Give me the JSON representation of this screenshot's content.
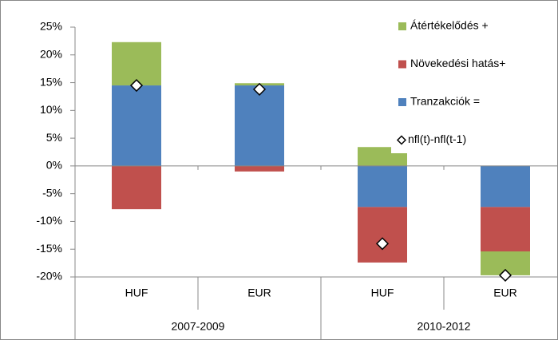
{
  "chart_data": {
    "type": "bar",
    "stacked": true,
    "groups": [
      {
        "name": "2007-2009",
        "categories": [
          "HUF",
          "EUR"
        ]
      },
      {
        "name": "2010-2012",
        "categories": [
          "HUF",
          "EUR"
        ]
      }
    ],
    "series": [
      {
        "name": "Átértékelődés +",
        "color": "#9bbb59",
        "values": [
          7.8,
          0.4,
          3.4,
          -4.3
        ]
      },
      {
        "name": "Növekedési hatás+",
        "color": "#c0504d",
        "values": [
          -7.8,
          -1.0,
          -10.0,
          -8.0
        ]
      },
      {
        "name": "Tranzakciók =",
        "color": "#4f81bd",
        "values": [
          14.5,
          14.5,
          -7.4,
          -7.4
        ]
      },
      {
        "name": "nfl(t)-nfl(t-1)",
        "type": "scatter",
        "color": "#ffffff",
        "values": [
          14.5,
          13.8,
          -14.0,
          -19.7
        ]
      }
    ],
    "ylim": [
      -20,
      25
    ],
    "yticks": [
      {
        "value": -20,
        "label": "-20%"
      },
      {
        "value": -15,
        "label": "-15%"
      },
      {
        "value": -10,
        "label": "-10%"
      },
      {
        "value": -5,
        "label": "-5%"
      },
      {
        "value": 0,
        "label": "0%"
      },
      {
        "value": 5,
        "label": "5%"
      },
      {
        "value": 10,
        "label": "10%"
      },
      {
        "value": 15,
        "label": "15%"
      },
      {
        "value": 20,
        "label": "20%"
      },
      {
        "value": 25,
        "label": "25%"
      }
    ],
    "grid": false,
    "legend": "top-right"
  }
}
